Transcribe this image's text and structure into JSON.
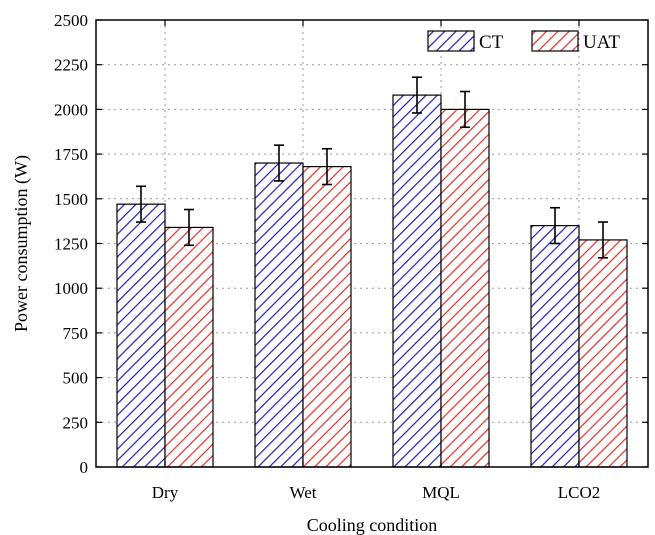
{
  "chart_data": {
    "type": "bar",
    "title": "",
    "xlabel": "Cooling condition",
    "ylabel": "Power consumption (W)",
    "categories": [
      "Dry",
      "Wet",
      "MQL",
      "LCO2"
    ],
    "ylim": [
      0,
      2500
    ],
    "yticks": [
      0,
      250,
      500,
      750,
      1000,
      1250,
      1500,
      1750,
      2000,
      2250,
      2500
    ],
    "grid": true,
    "legend_position": "top-right",
    "series": [
      {
        "name": "CT",
        "values": [
          1470,
          1700,
          2080,
          1350
        ],
        "errors": [
          100,
          100,
          100,
          100
        ],
        "color": "#1f1fb4"
      },
      {
        "name": "UAT",
        "values": [
          1340,
          1680,
          2000,
          1270
        ],
        "errors": [
          100,
          100,
          100,
          100
        ],
        "color": "#e0302a"
      }
    ]
  }
}
